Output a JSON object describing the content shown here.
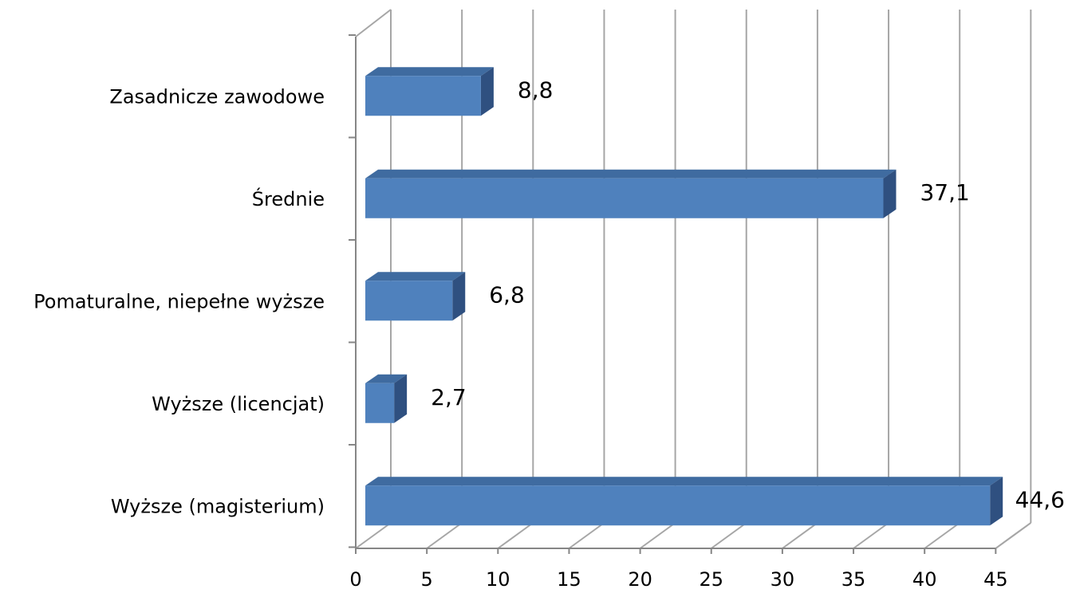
{
  "chart_data": {
    "type": "bar",
    "orientation": "horizontal",
    "three_d": true,
    "categories": [
      "Zasadnicze zawodowe",
      "Średnie",
      "Pomaturalne, niepełne wyższe",
      "Wyższe (licencjat)",
      "Wyższe (magisterium)"
    ],
    "values": [
      8.8,
      37.1,
      6.8,
      2.7,
      44.6
    ],
    "data_labels": [
      "8,8",
      "37,1",
      "6,8",
      "2,7",
      "44,6"
    ],
    "title": "",
    "xlabel": "",
    "ylabel": "",
    "xlim": [
      0,
      45
    ],
    "xticks": [
      0,
      5,
      10,
      15,
      20,
      25,
      30,
      35,
      40,
      45
    ],
    "xtick_labels": [
      "0",
      "5",
      "10",
      "15",
      "20",
      "25",
      "30",
      "35",
      "40",
      "45"
    ],
    "grid": true,
    "legend": "none",
    "colors": {
      "bar_front": "#4F81BD",
      "bar_top": "#3F6BA0",
      "bar_side": "#2F5080",
      "grid": "#A6A6A6",
      "axis": "#868686"
    }
  }
}
